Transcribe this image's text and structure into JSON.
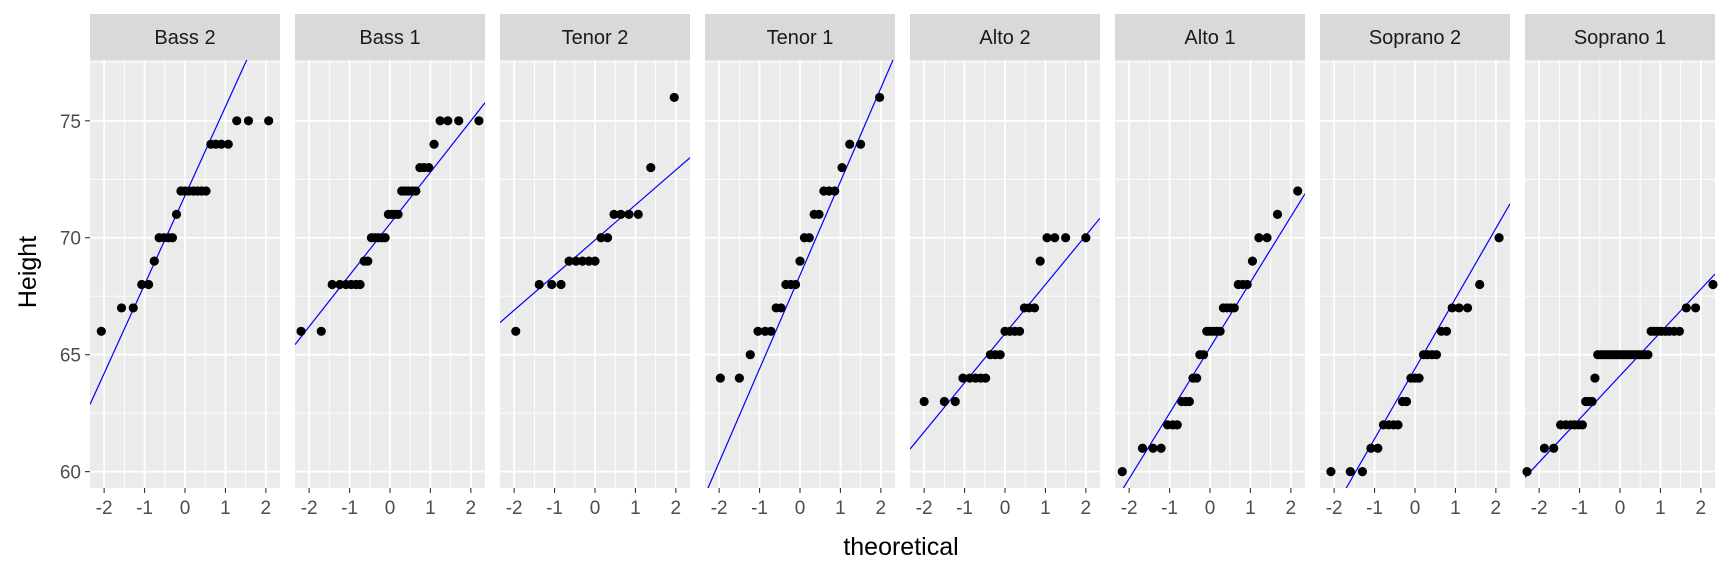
{
  "chart_data": {
    "type": "scatter",
    "facet_layout": "single-row",
    "xlabel": "theoretical",
    "ylabel": "Height",
    "xlim": [
      -2.35,
      2.35
    ],
    "ylim": [
      59.3,
      77.6
    ],
    "x_ticks": [
      -2,
      -1,
      0,
      1,
      2
    ],
    "x_tick_labels": [
      "-2",
      "-1",
      "0",
      "1",
      "2"
    ],
    "y_ticks": [
      60,
      65,
      70,
      75
    ],
    "y_tick_labels": [
      "60",
      "65",
      "70",
      "75"
    ],
    "grid": true,
    "panel_background": "#ebebeb",
    "strip_background": "#d9d9d9",
    "point_color": "#000000",
    "line_color": "#0000ff",
    "facets": [
      {
        "label": "Bass 2",
        "line": {
          "intercept": 71.8,
          "slope": 3.8
        },
        "points": [
          [
            -2.07,
            66
          ],
          [
            -1.57,
            67
          ],
          [
            -1.28,
            67
          ],
          [
            -1.07,
            68
          ],
          [
            -0.9,
            68
          ],
          [
            -0.76,
            69
          ],
          [
            -0.64,
            70
          ],
          [
            -0.52,
            70
          ],
          [
            -0.41,
            70
          ],
          [
            -0.31,
            70
          ],
          [
            -0.21,
            71
          ],
          [
            -0.1,
            72
          ],
          [
            0,
            72
          ],
          [
            0.1,
            72
          ],
          [
            0.21,
            72
          ],
          [
            0.31,
            72
          ],
          [
            0.41,
            72
          ],
          [
            0.52,
            72
          ],
          [
            0.64,
            74
          ],
          [
            0.76,
            74
          ],
          [
            0.9,
            74
          ],
          [
            1.07,
            74
          ],
          [
            1.28,
            75
          ],
          [
            1.57,
            75
          ],
          [
            2.07,
            75
          ]
        ]
      },
      {
        "label": "Bass 1",
        "line": {
          "intercept": 70.6,
          "slope": 2.2
        },
        "points": [
          [
            -2.2,
            66
          ],
          [
            -1.7,
            66
          ],
          [
            -1.43,
            68
          ],
          [
            -1.24,
            68
          ],
          [
            -1.09,
            68
          ],
          [
            -0.96,
            68
          ],
          [
            -0.84,
            68
          ],
          [
            -0.74,
            68
          ],
          [
            -0.64,
            69
          ],
          [
            -0.55,
            69
          ],
          [
            -0.46,
            70
          ],
          [
            -0.37,
            70
          ],
          [
            -0.29,
            70
          ],
          [
            -0.2,
            70
          ],
          [
            -0.12,
            70
          ],
          [
            -0.04,
            71
          ],
          [
            0.04,
            71
          ],
          [
            0.12,
            71
          ],
          [
            0.2,
            71
          ],
          [
            0.29,
            72
          ],
          [
            0.37,
            72
          ],
          [
            0.46,
            72
          ],
          [
            0.55,
            72
          ],
          [
            0.64,
            72
          ],
          [
            0.74,
            73
          ],
          [
            0.84,
            73
          ],
          [
            0.96,
            73
          ],
          [
            1.09,
            74
          ],
          [
            1.24,
            75
          ],
          [
            1.43,
            75
          ],
          [
            1.7,
            75
          ],
          [
            2.2,
            75
          ]
        ]
      },
      {
        "label": "Tenor 2",
        "line": {
          "intercept": 69.9,
          "slope": 1.5
        },
        "points": [
          [
            -1.96,
            66
          ],
          [
            -1.38,
            68
          ],
          [
            -1.07,
            68
          ],
          [
            -0.84,
            68
          ],
          [
            -0.64,
            69
          ],
          [
            -0.47,
            69
          ],
          [
            -0.31,
            69
          ],
          [
            -0.15,
            69
          ],
          [
            0,
            69
          ],
          [
            0.15,
            70
          ],
          [
            0.31,
            70
          ],
          [
            0.47,
            71
          ],
          [
            0.64,
            71
          ],
          [
            0.84,
            71
          ],
          [
            1.07,
            71
          ],
          [
            1.38,
            73
          ],
          [
            1.96,
            76
          ]
        ]
      },
      {
        "label": "Tenor 1",
        "line": {
          "intercept": 68.4,
          "slope": 4.0
        },
        "points": [
          [
            -1.97,
            64
          ],
          [
            -1.5,
            64
          ],
          [
            -1.23,
            65
          ],
          [
            -1.04,
            66
          ],
          [
            -0.86,
            66
          ],
          [
            -0.72,
            66
          ],
          [
            -0.59,
            67
          ],
          [
            -0.47,
            67
          ],
          [
            -0.35,
            68
          ],
          [
            -0.23,
            68
          ],
          [
            -0.11,
            68
          ],
          [
            0,
            69
          ],
          [
            0.11,
            70
          ],
          [
            0.23,
            70
          ],
          [
            0.35,
            71
          ],
          [
            0.47,
            71
          ],
          [
            0.59,
            72
          ],
          [
            0.72,
            72
          ],
          [
            0.86,
            72
          ],
          [
            1.04,
            73
          ],
          [
            1.23,
            74
          ],
          [
            1.5,
            74
          ],
          [
            1.97,
            76
          ]
        ]
      },
      {
        "label": "Alto 2",
        "line": {
          "intercept": 65.9,
          "slope": 2.1
        },
        "points": [
          [
            -2.0,
            63
          ],
          [
            -1.5,
            63
          ],
          [
            -1.23,
            63
          ],
          [
            -1.04,
            64
          ],
          [
            -0.87,
            64
          ],
          [
            -0.73,
            64
          ],
          [
            -0.6,
            64
          ],
          [
            -0.48,
            64
          ],
          [
            -0.36,
            65
          ],
          [
            -0.24,
            65
          ],
          [
            -0.12,
            65
          ],
          [
            0,
            66
          ],
          [
            0.12,
            66
          ],
          [
            0.24,
            66
          ],
          [
            0.36,
            66
          ],
          [
            0.48,
            67
          ],
          [
            0.6,
            67
          ],
          [
            0.73,
            67
          ],
          [
            0.87,
            69
          ],
          [
            1.04,
            70
          ],
          [
            1.23,
            70
          ],
          [
            1.5,
            70
          ],
          [
            2.0,
            70
          ]
        ]
      },
      {
        "label": "Alto 1",
        "line": {
          "intercept": 65.3,
          "slope": 2.8
        },
        "points": [
          [
            -2.17,
            60
          ],
          [
            -1.67,
            61
          ],
          [
            -1.41,
            61
          ],
          [
            -1.21,
            61
          ],
          [
            -1.05,
            62
          ],
          [
            -0.92,
            62
          ],
          [
            -0.81,
            62
          ],
          [
            -0.7,
            63
          ],
          [
            -0.6,
            63
          ],
          [
            -0.51,
            63
          ],
          [
            -0.42,
            64
          ],
          [
            -0.33,
            64
          ],
          [
            -0.25,
            65
          ],
          [
            -0.16,
            65
          ],
          [
            -0.08,
            66
          ],
          [
            0,
            66
          ],
          [
            0.08,
            66
          ],
          [
            0.16,
            66
          ],
          [
            0.25,
            66
          ],
          [
            0.33,
            67
          ],
          [
            0.42,
            67
          ],
          [
            0.51,
            67
          ],
          [
            0.6,
            67
          ],
          [
            0.7,
            68
          ],
          [
            0.81,
            68
          ],
          [
            0.92,
            68
          ],
          [
            1.05,
            69
          ],
          [
            1.21,
            70
          ],
          [
            1.41,
            70
          ],
          [
            1.67,
            71
          ],
          [
            2.17,
            72
          ]
        ]
      },
      {
        "label": "Soprano 2",
        "line": {
          "intercept": 64.4,
          "slope": 3.0
        },
        "points": [
          [
            -2.08,
            60
          ],
          [
            -1.6,
            60
          ],
          [
            -1.3,
            60
          ],
          [
            -1.09,
            61
          ],
          [
            -0.92,
            61
          ],
          [
            -0.78,
            62
          ],
          [
            -0.65,
            62
          ],
          [
            -0.53,
            62
          ],
          [
            -0.42,
            62
          ],
          [
            -0.31,
            63
          ],
          [
            -0.21,
            63
          ],
          [
            -0.1,
            64
          ],
          [
            0,
            64
          ],
          [
            0.1,
            64
          ],
          [
            0.21,
            65
          ],
          [
            0.31,
            65
          ],
          [
            0.42,
            65
          ],
          [
            0.53,
            65
          ],
          [
            0.65,
            66
          ],
          [
            0.78,
            66
          ],
          [
            0.92,
            67
          ],
          [
            1.09,
            67
          ],
          [
            1.3,
            67
          ],
          [
            1.6,
            68
          ],
          [
            2.08,
            70
          ]
        ]
      },
      {
        "label": "Soprano 1",
        "line": {
          "intercept": 64.1,
          "slope": 1.85
        },
        "points": [
          [
            -2.3,
            60
          ],
          [
            -1.87,
            61
          ],
          [
            -1.64,
            61
          ],
          [
            -1.47,
            62
          ],
          [
            -1.34,
            62
          ],
          [
            -1.22,
            62
          ],
          [
            -1.12,
            62
          ],
          [
            -1.02,
            62
          ],
          [
            -0.93,
            62
          ],
          [
            -0.85,
            63
          ],
          [
            -0.77,
            63
          ],
          [
            -0.69,
            63
          ],
          [
            -0.62,
            64
          ],
          [
            -0.55,
            65
          ],
          [
            -0.48,
            65
          ],
          [
            -0.41,
            65
          ],
          [
            -0.34,
            65
          ],
          [
            -0.27,
            65
          ],
          [
            -0.21,
            65
          ],
          [
            -0.14,
            65
          ],
          [
            -0.07,
            65
          ],
          [
            0,
            65
          ],
          [
            0.07,
            65
          ],
          [
            0.14,
            65
          ],
          [
            0.21,
            65
          ],
          [
            0.27,
            65
          ],
          [
            0.34,
            65
          ],
          [
            0.41,
            65
          ],
          [
            0.48,
            65
          ],
          [
            0.55,
            65
          ],
          [
            0.62,
            65
          ],
          [
            0.69,
            65
          ],
          [
            0.77,
            66
          ],
          [
            0.85,
            66
          ],
          [
            0.93,
            66
          ],
          [
            1.02,
            66
          ],
          [
            1.12,
            66
          ],
          [
            1.22,
            66
          ],
          [
            1.34,
            66
          ],
          [
            1.47,
            66
          ],
          [
            1.64,
            67
          ],
          [
            1.87,
            67
          ],
          [
            2.3,
            68
          ]
        ]
      }
    ]
  }
}
